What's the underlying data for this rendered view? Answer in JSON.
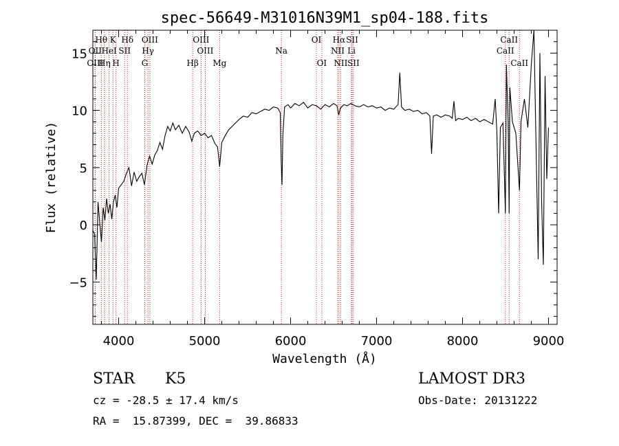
{
  "chart_data": {
    "type": "line",
    "title": "spec-56649-M31016N39M1_sp04-188.fits",
    "xlabel": "Wavelength (Å)",
    "ylabel": "Flux (relative)",
    "xlim": [
      3700,
      9100
    ],
    "ylim": [
      -8.7,
      17
    ],
    "x_ticks": [
      4000,
      5000,
      6000,
      7000,
      8000,
      9000
    ],
    "y_ticks": [
      -5,
      0,
      5,
      10,
      15
    ],
    "grid": false,
    "series": [
      {
        "points": [
          [
            3700,
            -0.5
          ],
          [
            3720,
            -0.8
          ],
          [
            3740,
            -4.8
          ],
          [
            3760,
            2.0
          ],
          [
            3780,
            0.2
          ],
          [
            3800,
            -1.5
          ],
          [
            3820,
            1.5
          ],
          [
            3840,
            0.4
          ],
          [
            3860,
            2.3
          ],
          [
            3880,
            1.0
          ],
          [
            3900,
            1.8
          ],
          [
            3920,
            0.5
          ],
          [
            3940,
            2.0
          ],
          [
            3960,
            2.6
          ],
          [
            3980,
            1.5
          ],
          [
            4000,
            3.2
          ],
          [
            4030,
            3.5
          ],
          [
            4060,
            3.8
          ],
          [
            4090,
            4.5
          ],
          [
            4120,
            5.0
          ],
          [
            4150,
            3.4
          ],
          [
            4180,
            4.6
          ],
          [
            4210,
            3.8
          ],
          [
            4240,
            4.2
          ],
          [
            4270,
            4.5
          ],
          [
            4300,
            3.5
          ],
          [
            4330,
            5.2
          ],
          [
            4360,
            6.0
          ],
          [
            4390,
            5.3
          ],
          [
            4420,
            6.1
          ],
          [
            4450,
            6.5
          ],
          [
            4480,
            7.2
          ],
          [
            4510,
            6.6
          ],
          [
            4540,
            7.8
          ],
          [
            4570,
            8.6
          ],
          [
            4600,
            8.2
          ],
          [
            4630,
            8.9
          ],
          [
            4660,
            8.3
          ],
          [
            4700,
            8.7
          ],
          [
            4740,
            8.0
          ],
          [
            4780,
            8.6
          ],
          [
            4820,
            8.1
          ],
          [
            4850,
            7.3
          ],
          [
            4880,
            8.0
          ],
          [
            4920,
            8.2
          ],
          [
            4960,
            7.8
          ],
          [
            5000,
            8.0
          ],
          [
            5040,
            7.6
          ],
          [
            5080,
            7.8
          ],
          [
            5120,
            7.1
          ],
          [
            5150,
            6.8
          ],
          [
            5175,
            5.1
          ],
          [
            5200,
            7.2
          ],
          [
            5240,
            7.8
          ],
          [
            5280,
            8.3
          ],
          [
            5320,
            8.6
          ],
          [
            5360,
            8.9
          ],
          [
            5400,
            9.2
          ],
          [
            5450,
            9.5
          ],
          [
            5500,
            9.4
          ],
          [
            5550,
            9.8
          ],
          [
            5600,
            9.7
          ],
          [
            5650,
            9.9
          ],
          [
            5700,
            10.1
          ],
          [
            5750,
            10.0
          ],
          [
            5800,
            10.3
          ],
          [
            5850,
            10.2
          ],
          [
            5880,
            9.8
          ],
          [
            5890,
            5.6
          ],
          [
            5900,
            3.5
          ],
          [
            5910,
            7.9
          ],
          [
            5930,
            10.3
          ],
          [
            5970,
            10.5
          ],
          [
            6000,
            10.2
          ],
          [
            6050,
            10.6
          ],
          [
            6100,
            10.4
          ],
          [
            6150,
            10.7
          ],
          [
            6200,
            10.2
          ],
          [
            6250,
            10.5
          ],
          [
            6300,
            10.4
          ],
          [
            6350,
            10.1
          ],
          [
            6400,
            10.5
          ],
          [
            6450,
            10.3
          ],
          [
            6500,
            10.6
          ],
          [
            6540,
            10.4
          ],
          [
            6560,
            9.6
          ],
          [
            6580,
            10.2
          ],
          [
            6620,
            10.5
          ],
          [
            6660,
            10.4
          ],
          [
            6700,
            10.6
          ],
          [
            6750,
            10.4
          ],
          [
            6800,
            10.3
          ],
          [
            6850,
            10.5
          ],
          [
            6900,
            10.3
          ],
          [
            6950,
            10.4
          ],
          [
            7000,
            10.2
          ],
          [
            7050,
            10.3
          ],
          [
            7100,
            10.0
          ],
          [
            7150,
            10.2
          ],
          [
            7200,
            10.1
          ],
          [
            7250,
            10.5
          ],
          [
            7270,
            13.3
          ],
          [
            7290,
            10.3
          ],
          [
            7330,
            10.0
          ],
          [
            7380,
            10.1
          ],
          [
            7430,
            9.9
          ],
          [
            7480,
            10.0
          ],
          [
            7530,
            9.7
          ],
          [
            7580,
            9.8
          ],
          [
            7620,
            9.5
          ],
          [
            7640,
            6.2
          ],
          [
            7660,
            9.5
          ],
          [
            7700,
            9.6
          ],
          [
            7750,
            9.4
          ],
          [
            7800,
            9.6
          ],
          [
            7850,
            9.5
          ],
          [
            7880,
            9.3
          ],
          [
            7900,
            10.8
          ],
          [
            7920,
            9.1
          ],
          [
            7950,
            9.3
          ],
          [
            8000,
            9.2
          ],
          [
            8050,
            9.4
          ],
          [
            8100,
            9.1
          ],
          [
            8150,
            9.3
          ],
          [
            8200,
            9.0
          ],
          [
            8250,
            9.2
          ],
          [
            8300,
            9.0
          ],
          [
            8350,
            8.8
          ],
          [
            8380,
            11.0
          ],
          [
            8400,
            8.0
          ],
          [
            8420,
            1.0
          ],
          [
            8440,
            8.5
          ],
          [
            8470,
            8.9
          ],
          [
            8498,
            1.0
          ],
          [
            8510,
            14.0
          ],
          [
            8530,
            9.0
          ],
          [
            8542,
            1.0
          ],
          [
            8550,
            12.0
          ],
          [
            8580,
            9.0
          ],
          [
            8620,
            8.0
          ],
          [
            8662,
            3.0
          ],
          [
            8680,
            9.0
          ],
          [
            8720,
            11.0
          ],
          [
            8760,
            8.5
          ],
          [
            8800,
            14.0
          ],
          [
            8830,
            17.0
          ],
          [
            8860,
            5.0
          ],
          [
            8880,
            -3.0
          ],
          [
            8900,
            15.0
          ],
          [
            8920,
            2.0
          ],
          [
            8940,
            -3.5
          ],
          [
            8960,
            13.0
          ],
          [
            8980,
            4.0
          ],
          [
            9000,
            8.5
          ]
        ]
      }
    ],
    "lines": [
      {
        "label": "Hθ",
        "wavelength": 3798,
        "row": 1
      },
      {
        "label": "OII",
        "wavelength": 3727,
        "row": 2
      },
      {
        "label": "OIII",
        "wavelength": 3727,
        "row": 3
      },
      {
        "label": "Hη",
        "wavelength": 3835,
        "row": 3
      },
      {
        "label": "K",
        "wavelength": 3934,
        "row": 1
      },
      {
        "label": "HeI",
        "wavelength": 3889,
        "row": 2
      },
      {
        "label": "H",
        "wavelength": 3969,
        "row": 3
      },
      {
        "label": "Hδ",
        "wavelength": 4102,
        "row": 1
      },
      {
        "label": "SII",
        "wavelength": 4070,
        "row": 2
      },
      {
        "label": "OIII",
        "wavelength": 4363,
        "row": 1
      },
      {
        "label": "Hγ",
        "wavelength": 4341,
        "row": 2
      },
      {
        "label": "G",
        "wavelength": 4304,
        "row": 3
      },
      {
        "label": "OIII",
        "wavelength": 4959,
        "row": 1
      },
      {
        "label": "OIII",
        "wavelength": 5007,
        "row": 2
      },
      {
        "label": "Hβ",
        "wavelength": 4861,
        "row": 3
      },
      {
        "label": "Mg",
        "wavelength": 5175,
        "row": 3
      },
      {
        "label": "Na",
        "wavelength": 5893,
        "row": 2
      },
      {
        "label": "OI",
        "wavelength": 6300,
        "row": 1
      },
      {
        "label": "OI",
        "wavelength": 6363,
        "row": 3
      },
      {
        "label": "Hα",
        "wavelength": 6563,
        "row": 1
      },
      {
        "label": "SII",
        "wavelength": 6716,
        "row": 1
      },
      {
        "label": "NII",
        "wavelength": 6548,
        "row": 2
      },
      {
        "label": "Li",
        "wavelength": 6708,
        "row": 2
      },
      {
        "label": "NII",
        "wavelength": 6583,
        "row": 3
      },
      {
        "label": "SII",
        "wavelength": 6731,
        "row": 3
      },
      {
        "label": "CaII",
        "wavelength": 8542,
        "row": 1
      },
      {
        "label": "CaII",
        "wavelength": 8498,
        "row": 2
      },
      {
        "label": "CaII",
        "wavelength": 8662,
        "row": 3
      }
    ]
  },
  "info": {
    "object_class": "STAR",
    "subclass": "K5",
    "survey": "LAMOST DR3",
    "cz": "cz = -28.5 ± 17.4 km/s",
    "obs_date": "Obs-Date: 20131222",
    "coords": "RA =  15.87399, DEC =  39.86833"
  }
}
